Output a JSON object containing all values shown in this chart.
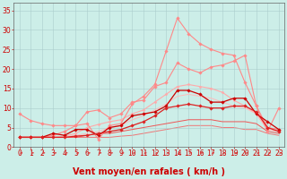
{
  "title": "",
  "xlabel": "Vent moyen/en rafales ( km/h )",
  "background_color": "#cceee8",
  "grid_color": "#aacccc",
  "xlim": [
    -0.5,
    23.5
  ],
  "ylim": [
    0,
    37
  ],
  "yticks": [
    0,
    5,
    10,
    15,
    20,
    25,
    30,
    35
  ],
  "xticks": [
    0,
    1,
    2,
    3,
    4,
    5,
    6,
    7,
    8,
    9,
    10,
    11,
    12,
    13,
    14,
    15,
    16,
    17,
    18,
    19,
    20,
    21,
    22,
    23
  ],
  "lines": [
    {
      "x": [
        0,
        1,
        2,
        3,
        4,
        5,
        6,
        7,
        8,
        9,
        10,
        11,
        12,
        13,
        14,
        15,
        16,
        17,
        18,
        19,
        20,
        21,
        22,
        23
      ],
      "y": [
        8.5,
        6.8,
        6.0,
        5.5,
        5.5,
        5.5,
        6.0,
        2.0,
        5.5,
        6.0,
        11.0,
        13.0,
        16.0,
        24.5,
        33.0,
        29.0,
        26.5,
        25.0,
        24.0,
        23.5,
        16.5,
        10.5,
        4.0,
        10.0
      ],
      "color": "#ff8888",
      "linewidth": 0.8,
      "marker": "D",
      "markersize": 1.8,
      "zorder": 3
    },
    {
      "x": [
        0,
        1,
        2,
        3,
        4,
        5,
        6,
        7,
        8,
        9,
        10,
        11,
        12,
        13,
        14,
        15,
        16,
        17,
        18,
        19,
        20,
        21,
        22,
        23
      ],
      "y": [
        2.5,
        2.5,
        2.5,
        3.0,
        4.0,
        5.5,
        9.0,
        9.5,
        7.5,
        8.5,
        11.5,
        12.0,
        15.5,
        16.5,
        21.5,
        20.0,
        19.0,
        20.5,
        21.0,
        22.0,
        23.5,
        10.5,
        5.0,
        4.5
      ],
      "color": "#ff8888",
      "linewidth": 0.8,
      "marker": "D",
      "markersize": 1.8,
      "zorder": 3
    },
    {
      "x": [
        0,
        1,
        2,
        3,
        4,
        5,
        6,
        7,
        8,
        9,
        10,
        11,
        12,
        13,
        14,
        15,
        16,
        17,
        18,
        19,
        20,
        21,
        22,
        23
      ],
      "y": [
        2.5,
        2.5,
        2.5,
        2.5,
        2.8,
        3.5,
        5.0,
        5.8,
        6.5,
        7.0,
        8.5,
        9.5,
        11.5,
        13.5,
        15.5,
        16.0,
        15.5,
        15.0,
        14.0,
        12.0,
        10.5,
        8.5,
        4.5,
        4.0
      ],
      "color": "#ffaaaa",
      "linewidth": 0.8,
      "marker": "D",
      "markersize": 1.5,
      "zorder": 2
    },
    {
      "x": [
        0,
        1,
        2,
        3,
        4,
        5,
        6,
        7,
        8,
        9,
        10,
        11,
        12,
        13,
        14,
        15,
        16,
        17,
        18,
        19,
        20,
        21,
        22,
        23
      ],
      "y": [
        2.5,
        2.5,
        2.5,
        2.5,
        2.5,
        3.0,
        3.5,
        4.0,
        5.0,
        5.5,
        7.0,
        8.0,
        9.5,
        11.0,
        13.0,
        13.5,
        13.0,
        12.5,
        11.5,
        10.5,
        10.0,
        8.5,
        4.5,
        4.0
      ],
      "color": "#ffbbbb",
      "linewidth": 0.7,
      "marker": null,
      "markersize": 0,
      "zorder": 2
    },
    {
      "x": [
        0,
        1,
        2,
        3,
        4,
        5,
        6,
        7,
        8,
        9,
        10,
        11,
        12,
        13,
        14,
        15,
        16,
        17,
        18,
        19,
        20,
        21,
        22,
        23
      ],
      "y": [
        2.5,
        2.5,
        2.5,
        3.5,
        3.0,
        4.5,
        4.5,
        3.0,
        5.0,
        5.5,
        8.0,
        8.5,
        9.0,
        10.5,
        14.5,
        14.5,
        13.5,
        11.5,
        11.5,
        12.5,
        12.5,
        8.5,
        6.5,
        4.5
      ],
      "color": "#cc0000",
      "linewidth": 0.9,
      "marker": "D",
      "markersize": 1.8,
      "zorder": 4
    },
    {
      "x": [
        0,
        1,
        2,
        3,
        4,
        5,
        6,
        7,
        8,
        9,
        10,
        11,
        12,
        13,
        14,
        15,
        16,
        17,
        18,
        19,
        20,
        21,
        22,
        23
      ],
      "y": [
        2.5,
        2.5,
        2.5,
        2.5,
        2.5,
        2.8,
        3.0,
        3.5,
        4.0,
        4.5,
        5.5,
        6.5,
        8.0,
        10.0,
        10.5,
        11.0,
        10.5,
        10.0,
        10.0,
        10.5,
        10.5,
        9.0,
        5.0,
        4.0
      ],
      "color": "#dd2222",
      "linewidth": 0.9,
      "marker": "D",
      "markersize": 1.8,
      "zorder": 4
    },
    {
      "x": [
        0,
        1,
        2,
        3,
        4,
        5,
        6,
        7,
        8,
        9,
        10,
        11,
        12,
        13,
        14,
        15,
        16,
        17,
        18,
        19,
        20,
        21,
        22,
        23
      ],
      "y": [
        2.5,
        2.5,
        2.5,
        2.5,
        2.5,
        2.5,
        3.0,
        3.5,
        3.5,
        4.0,
        4.5,
        5.0,
        5.5,
        6.0,
        6.5,
        7.0,
        7.0,
        7.0,
        6.5,
        6.5,
        6.5,
        6.0,
        4.0,
        3.5
      ],
      "color": "#ee5555",
      "linewidth": 0.7,
      "marker": null,
      "markersize": 0,
      "zorder": 2
    },
    {
      "x": [
        0,
        1,
        2,
        3,
        4,
        5,
        6,
        7,
        8,
        9,
        10,
        11,
        12,
        13,
        14,
        15,
        16,
        17,
        18,
        19,
        20,
        21,
        22,
        23
      ],
      "y": [
        2.5,
        2.5,
        2.5,
        2.5,
        2.5,
        2.5,
        2.5,
        2.5,
        2.5,
        2.8,
        3.0,
        3.5,
        4.0,
        4.5,
        5.0,
        5.5,
        5.5,
        5.5,
        5.0,
        5.0,
        4.5,
        4.5,
        3.5,
        3.0
      ],
      "color": "#ee7777",
      "linewidth": 0.7,
      "marker": null,
      "markersize": 0,
      "zorder": 1
    }
  ],
  "xlabel_color": "#cc0000",
  "tick_color": "#cc0000",
  "tick_fontsize": 5.5,
  "xlabel_fontsize": 7
}
